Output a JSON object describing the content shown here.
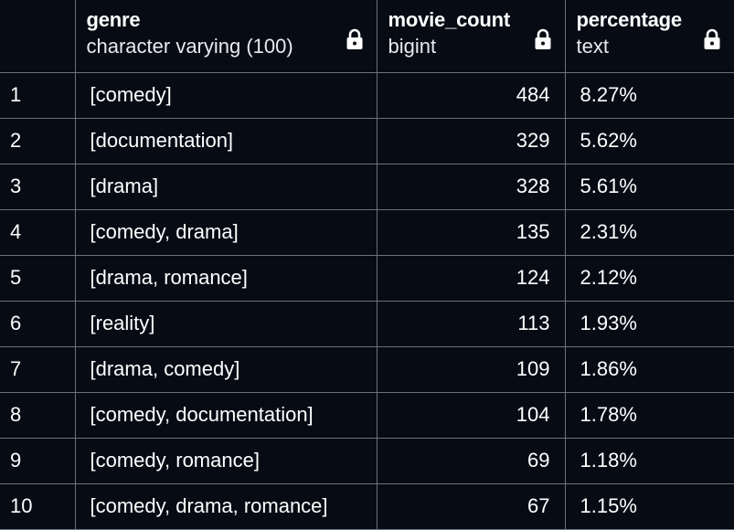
{
  "columns": [
    {
      "name": "genre",
      "type": "character varying (100)"
    },
    {
      "name": "movie_count",
      "type": "bigint"
    },
    {
      "name": "percentage",
      "type": "text"
    }
  ],
  "icons": {
    "column_lock": "lock-icon"
  },
  "rows": [
    {
      "index": "1",
      "genre": "[comedy]",
      "movie_count": "484",
      "percentage": "8.27%"
    },
    {
      "index": "2",
      "genre": "[documentation]",
      "movie_count": "329",
      "percentage": "5.62%"
    },
    {
      "index": "3",
      "genre": "[drama]",
      "movie_count": "328",
      "percentage": "5.61%"
    },
    {
      "index": "4",
      "genre": "[comedy, drama]",
      "movie_count": "135",
      "percentage": "2.31%"
    },
    {
      "index": "5",
      "genre": "[drama, romance]",
      "movie_count": "124",
      "percentage": "2.12%"
    },
    {
      "index": "6",
      "genre": "[reality]",
      "movie_count": "113",
      "percentage": "1.93%"
    },
    {
      "index": "7",
      "genre": "[drama, comedy]",
      "movie_count": "109",
      "percentage": "1.86%"
    },
    {
      "index": "8",
      "genre": "[comedy, documentation]",
      "movie_count": "104",
      "percentage": "1.78%"
    },
    {
      "index": "9",
      "genre": "[comedy, romance]",
      "movie_count": "69",
      "percentage": "1.18%"
    },
    {
      "index": "10",
      "genre": "[comedy, drama, romance]",
      "movie_count": "67",
      "percentage": "1.15%"
    }
  ],
  "colors": {
    "background": "#060b14",
    "grid_line": "#6b7380",
    "text": "#ffffff"
  }
}
